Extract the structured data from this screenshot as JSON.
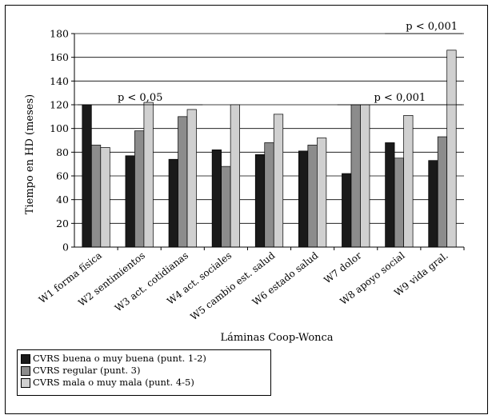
{
  "chart_data": {
    "type": "bar",
    "ylabel": "Tiempo en HD (meses)",
    "xlabel": "Láminas Coop-Wonca",
    "ylim": [
      0,
      180
    ],
    "yticks": [
      0,
      20,
      40,
      60,
      80,
      100,
      120,
      140,
      160,
      180
    ],
    "grid": true,
    "categories": [
      "W1 forma física",
      "W2 sentimientos",
      "W3 act. cotidianas",
      "W4 act. sociales",
      "W5 cambio est. salud",
      "W6 estado salud",
      "W7 dolor",
      "W8 apoyo social",
      "W9 vida gral."
    ],
    "series": [
      {
        "name": "CVRS buena o muy buena (punt. 1-2)",
        "color": "#1a1a1a",
        "values": [
          120,
          77,
          74,
          82,
          78,
          81,
          62,
          88,
          73
        ]
      },
      {
        "name": "CVRS regular (punt. 3)",
        "color": "#8c8c8c",
        "values": [
          86,
          98,
          110,
          68,
          88,
          86,
          120,
          75,
          93
        ]
      },
      {
        "name": "CVRS mala o muy mala (punt. 4-5)",
        "color": "#d0d0d0",
        "values": [
          84,
          122,
          116,
          120,
          112,
          92,
          120,
          111,
          166
        ]
      }
    ],
    "annotations": [
      {
        "text": "p < 0,05",
        "from_category": 0,
        "to_category": 2,
        "y": 120
      },
      {
        "text": "p < 0,001",
        "from_category": 6,
        "to_category": 8,
        "y": 120
      },
      {
        "text": "p < 0,001",
        "from_category": 8,
        "to_category": 8,
        "y": 180
      }
    ],
    "legend_position": "bottom-left"
  }
}
